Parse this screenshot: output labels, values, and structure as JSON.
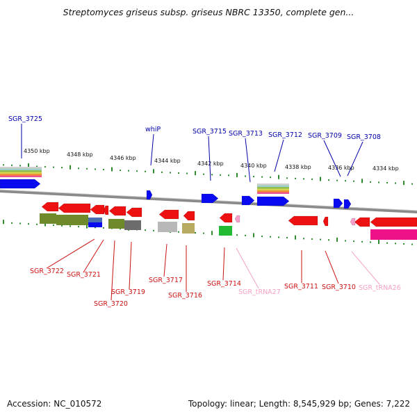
{
  "title": "Streptomyces griseus subsp. griseus NBRC 13350, complete gen...",
  "footer": {
    "accession": "Accession: NC_010572",
    "summary": "Topology: linear; Length: 8,545,929 bp; Genes: 7,222"
  },
  "colors": {
    "forward_gene": "#0a0af0",
    "reverse_gene": "#ee1111",
    "forward_label": "#0000aa",
    "reverse_label": "#cc1111",
    "trna": "#f4a0c8",
    "tick": "#2f8a2f",
    "backbone": "#8a8a8a",
    "olive": "#6f8a2a",
    "gray_feature": "#8a8a8a",
    "magenta": "#ee2277"
  },
  "scale_labels": [
    "4350 kbp",
    "4348 kbp",
    "4346 kbp",
    "4344 kbp",
    "4342 kbp",
    "4340 kbp",
    "4338 kbp",
    "4336 kbp",
    "4334 kbp"
  ],
  "forward_genes": [
    "SGR_3725",
    "whiP",
    "SGR_3715",
    "SGR_3713",
    "SGR_3712",
    "SGR_3709",
    "SGR_3708"
  ],
  "reverse_genes": [
    "SGR_3722",
    "SGR_3721",
    "SGR_3720",
    "SGR_3719",
    "SGR_3717",
    "SGR_3716",
    "SGR_3714",
    "SGR_3711",
    "SGR_3710"
  ],
  "trna_genes": [
    "SGR_tRNA27",
    "SGR_tRNA26"
  ]
}
